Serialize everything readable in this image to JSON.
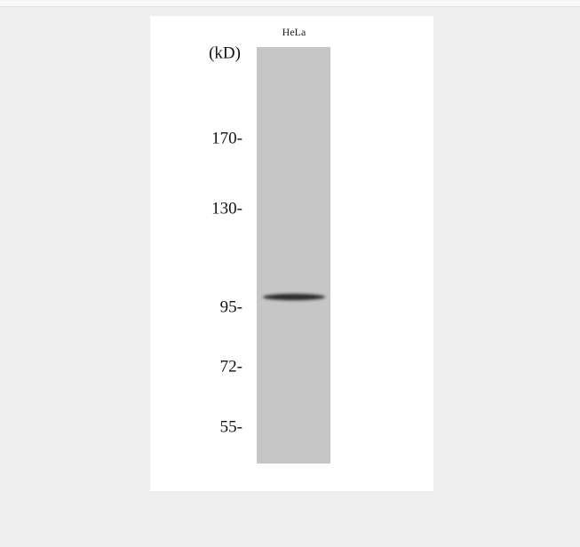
{
  "lane_label": "HeLa",
  "unit_label": "(kD)",
  "markers": [
    "170-",
    "130-",
    "95-",
    "72-",
    "55-"
  ]
}
